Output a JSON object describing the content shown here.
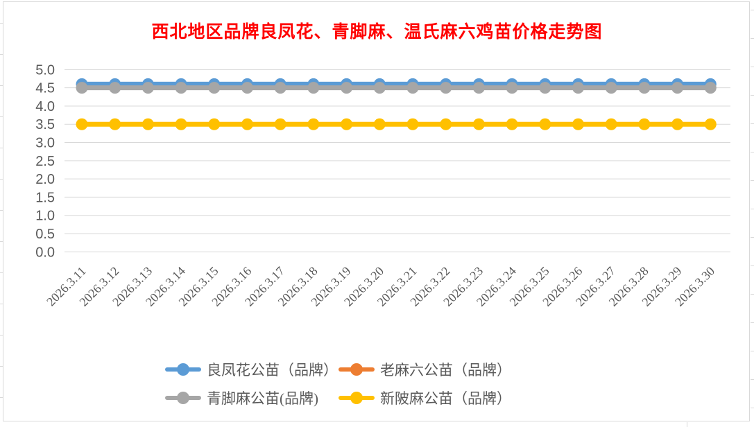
{
  "chart_data": {
    "type": "line",
    "title": "西北地区品牌良凤花、青脚麻、温氏麻六鸡苗价格走势图",
    "title_color": "#FF0000",
    "categories": [
      "2026.3.11",
      "2026.3.12",
      "2026.3.13",
      "2026.3.14",
      "2026.3.15",
      "2026.3.16",
      "2026.3.17",
      "2026.3.18",
      "2026.3.19",
      "2026.3.20",
      "2026.3.21",
      "2026.3.22",
      "2026.3.23",
      "2026.3.24",
      "2026.3.25",
      "2026.3.26",
      "2026.3.27",
      "2026.3.28",
      "2026.3.29",
      "2026.3.30"
    ],
    "series": [
      {
        "name": "良凤花公苗（品牌）",
        "color": "#5B9BD5",
        "values": [
          4.6,
          4.6,
          4.6,
          4.6,
          4.6,
          4.6,
          4.6,
          4.6,
          4.6,
          4.6,
          4.6,
          4.6,
          4.6,
          4.6,
          4.6,
          4.6,
          4.6,
          4.6,
          4.6,
          4.6
        ],
        "plotted": true
      },
      {
        "name": "老麻六公苗（品牌）",
        "color": "#ED7D31",
        "values": [],
        "plotted": false,
        "note": "legend entry only; no line visible in plot area"
      },
      {
        "name": "青脚麻公苗(品牌)",
        "color": "#A6A6A6",
        "values": [
          4.5,
          4.5,
          4.5,
          4.5,
          4.5,
          4.5,
          4.5,
          4.5,
          4.5,
          4.5,
          4.5,
          4.5,
          4.5,
          4.5,
          4.5,
          4.5,
          4.5,
          4.5,
          4.5,
          4.5
        ],
        "plotted": true
      },
      {
        "name": "新陂麻公苗（品牌）",
        "color": "#FFC000",
        "values": [
          3.5,
          3.5,
          3.5,
          3.5,
          3.5,
          3.5,
          3.5,
          3.5,
          3.5,
          3.5,
          3.5,
          3.5,
          3.5,
          3.5,
          3.5,
          3.5,
          3.5,
          3.5,
          3.5,
          3.5
        ],
        "plotted": true
      }
    ],
    "xlabel": "",
    "ylabel": "",
    "ylim": [
      0,
      5
    ],
    "ytick_step": 0.5,
    "ytick_labels": [
      "0.0",
      "0.5",
      "1.0",
      "1.5",
      "2.0",
      "2.5",
      "3.0",
      "3.5",
      "4.0",
      "4.5",
      "5.0"
    ],
    "grid": true,
    "grid_color": "#D9D9D9",
    "axis_label_color": "#595959",
    "x_tick_rotation_deg": 45,
    "legend_position": "bottom",
    "legend_rows": [
      [
        0,
        1
      ],
      [
        2,
        3
      ]
    ],
    "line_width": 7,
    "marker": "circle",
    "marker_radius": 8.5,
    "background": "#FFFFFF"
  }
}
